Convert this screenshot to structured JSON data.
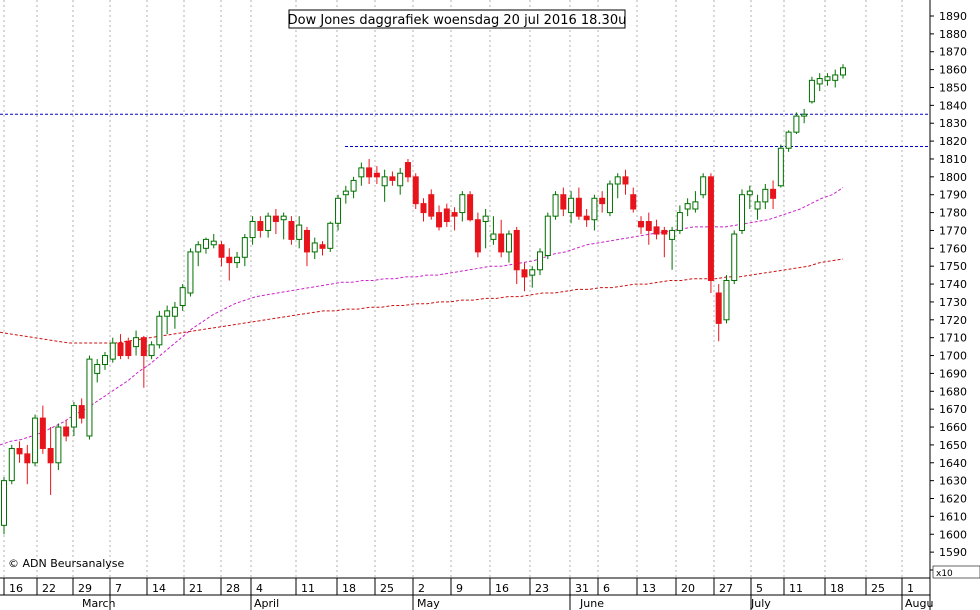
{
  "chart_data": {
    "type": "candlestick",
    "title": "Dow Jones daggrafiek woensdag 20 jul 2016 18.30u",
    "credit": "© ADN Beursanalyse",
    "axis_unit_label": "x10",
    "ylim": [
      1580,
      1890
    ],
    "ytick_step": 10,
    "grid": "vertical-dotted",
    "colors": {
      "up_body": "#ffffff",
      "up_border": "#007000",
      "down_body": "#e8141c",
      "down_border": "#e8141c",
      "wick_up": "#007000",
      "wick_down": "#e8141c",
      "hline": "#0000cc",
      "ma_short": "#cc22cc",
      "ma_long": "#cc1111",
      "grid": "#b0b0b0"
    },
    "horizontal_levels": [
      1835,
      1817
    ],
    "x_day_labels": [
      "16",
      "22",
      "29",
      "7",
      "14",
      "21",
      "28",
      "4",
      "11",
      "18",
      "25",
      "2",
      "9",
      "16",
      "23",
      "31",
      "6",
      "13",
      "20",
      "27",
      "5",
      "11",
      "18",
      "25",
      "1"
    ],
    "month_labels": [
      "March",
      "April",
      "May",
      "June",
      "July",
      "Augu"
    ],
    "candles": [
      {
        "o": 1605,
        "h": 1632,
        "l": 1600,
        "c": 1630
      },
      {
        "o": 1630,
        "h": 1650,
        "l": 1628,
        "c": 1648
      },
      {
        "o": 1648,
        "h": 1652,
        "l": 1640,
        "c": 1645
      },
      {
        "o": 1645,
        "h": 1650,
        "l": 1628,
        "c": 1640
      },
      {
        "o": 1640,
        "h": 1667,
        "l": 1638,
        "c": 1665
      },
      {
        "o": 1665,
        "h": 1672,
        "l": 1645,
        "c": 1648
      },
      {
        "o": 1648,
        "h": 1660,
        "l": 1622,
        "c": 1640
      },
      {
        "o": 1640,
        "h": 1662,
        "l": 1636,
        "c": 1660
      },
      {
        "o": 1660,
        "h": 1664,
        "l": 1652,
        "c": 1655
      },
      {
        "o": 1660,
        "h": 1674,
        "l": 1655,
        "c": 1672
      },
      {
        "o": 1672,
        "h": 1676,
        "l": 1662,
        "c": 1665
      },
      {
        "o": 1655,
        "h": 1700,
        "l": 1653,
        "c": 1698
      },
      {
        "o": 1690,
        "h": 1698,
        "l": 1685,
        "c": 1695
      },
      {
        "o": 1695,
        "h": 1702,
        "l": 1692,
        "c": 1700
      },
      {
        "o": 1698,
        "h": 1710,
        "l": 1696,
        "c": 1707
      },
      {
        "o": 1707,
        "h": 1712,
        "l": 1698,
        "c": 1700
      },
      {
        "o": 1708,
        "h": 1710,
        "l": 1698,
        "c": 1700
      },
      {
        "o": 1705,
        "h": 1714,
        "l": 1700,
        "c": 1710
      },
      {
        "o": 1710,
        "h": 1711,
        "l": 1682,
        "c": 1700
      },
      {
        "o": 1700,
        "h": 1708,
        "l": 1698,
        "c": 1706
      },
      {
        "o": 1706,
        "h": 1725,
        "l": 1704,
        "c": 1722
      },
      {
        "o": 1722,
        "h": 1728,
        "l": 1712,
        "c": 1725
      },
      {
        "o": 1722,
        "h": 1730,
        "l": 1715,
        "c": 1727
      },
      {
        "o": 1728,
        "h": 1740,
        "l": 1725,
        "c": 1738
      },
      {
        "o": 1735,
        "h": 1760,
        "l": 1733,
        "c": 1758
      },
      {
        "o": 1758,
        "h": 1764,
        "l": 1750,
        "c": 1762
      },
      {
        "o": 1760,
        "h": 1766,
        "l": 1757,
        "c": 1765
      },
      {
        "o": 1762,
        "h": 1768,
        "l": 1760,
        "c": 1764
      },
      {
        "o": 1762,
        "h": 1764,
        "l": 1750,
        "c": 1755
      },
      {
        "o": 1755,
        "h": 1760,
        "l": 1742,
        "c": 1752
      },
      {
        "o": 1752,
        "h": 1758,
        "l": 1749,
        "c": 1755
      },
      {
        "o": 1755,
        "h": 1768,
        "l": 1750,
        "c": 1766
      },
      {
        "o": 1766,
        "h": 1778,
        "l": 1762,
        "c": 1775
      },
      {
        "o": 1775,
        "h": 1778,
        "l": 1766,
        "c": 1770
      },
      {
        "o": 1770,
        "h": 1780,
        "l": 1766,
        "c": 1778
      },
      {
        "o": 1778,
        "h": 1782,
        "l": 1768,
        "c": 1775
      },
      {
        "o": 1776,
        "h": 1780,
        "l": 1765,
        "c": 1778
      },
      {
        "o": 1775,
        "h": 1778,
        "l": 1762,
        "c": 1765
      },
      {
        "o": 1765,
        "h": 1778,
        "l": 1760,
        "c": 1773
      },
      {
        "o": 1770,
        "h": 1772,
        "l": 1750,
        "c": 1758
      },
      {
        "o": 1758,
        "h": 1766,
        "l": 1754,
        "c": 1763
      },
      {
        "o": 1762,
        "h": 1764,
        "l": 1756,
        "c": 1760
      },
      {
        "o": 1760,
        "h": 1775,
        "l": 1758,
        "c": 1774
      },
      {
        "o": 1774,
        "h": 1790,
        "l": 1770,
        "c": 1788
      },
      {
        "o": 1790,
        "h": 1795,
        "l": 1785,
        "c": 1792
      },
      {
        "o": 1792,
        "h": 1800,
        "l": 1788,
        "c": 1798
      },
      {
        "o": 1800,
        "h": 1808,
        "l": 1795,
        "c": 1805
      },
      {
        "o": 1805,
        "h": 1810,
        "l": 1796,
        "c": 1800
      },
      {
        "o": 1802,
        "h": 1806,
        "l": 1796,
        "c": 1800
      },
      {
        "o": 1795,
        "h": 1804,
        "l": 1786,
        "c": 1800
      },
      {
        "o": 1800,
        "h": 1803,
        "l": 1795,
        "c": 1798
      },
      {
        "o": 1795,
        "h": 1805,
        "l": 1790,
        "c": 1802
      },
      {
        "o": 1808,
        "h": 1810,
        "l": 1797,
        "c": 1800
      },
      {
        "o": 1800,
        "h": 1802,
        "l": 1782,
        "c": 1785
      },
      {
        "o": 1785,
        "h": 1788,
        "l": 1775,
        "c": 1780
      },
      {
        "o": 1790,
        "h": 1793,
        "l": 1776,
        "c": 1778
      },
      {
        "o": 1780,
        "h": 1784,
        "l": 1770,
        "c": 1772
      },
      {
        "o": 1782,
        "h": 1785,
        "l": 1772,
        "c": 1775
      },
      {
        "o": 1780,
        "h": 1783,
        "l": 1770,
        "c": 1778
      },
      {
        "o": 1780,
        "h": 1792,
        "l": 1775,
        "c": 1790
      },
      {
        "o": 1790,
        "h": 1792,
        "l": 1775,
        "c": 1776
      },
      {
        "o": 1776,
        "h": 1780,
        "l": 1755,
        "c": 1758
      },
      {
        "o": 1775,
        "h": 1782,
        "l": 1760,
        "c": 1778
      },
      {
        "o": 1765,
        "h": 1778,
        "l": 1762,
        "c": 1768
      },
      {
        "o": 1768,
        "h": 1776,
        "l": 1755,
        "c": 1758
      },
      {
        "o": 1758,
        "h": 1770,
        "l": 1752,
        "c": 1768
      },
      {
        "o": 1770,
        "h": 1772,
        "l": 1740,
        "c": 1748
      },
      {
        "o": 1748,
        "h": 1752,
        "l": 1736,
        "c": 1744
      },
      {
        "o": 1745,
        "h": 1750,
        "l": 1738,
        "c": 1748
      },
      {
        "o": 1748,
        "h": 1760,
        "l": 1745,
        "c": 1758
      },
      {
        "o": 1756,
        "h": 1780,
        "l": 1754,
        "c": 1778
      },
      {
        "o": 1778,
        "h": 1792,
        "l": 1776,
        "c": 1790
      },
      {
        "o": 1790,
        "h": 1794,
        "l": 1778,
        "c": 1782
      },
      {
        "o": 1780,
        "h": 1792,
        "l": 1774,
        "c": 1788
      },
      {
        "o": 1788,
        "h": 1794,
        "l": 1776,
        "c": 1778
      },
      {
        "o": 1778,
        "h": 1782,
        "l": 1772,
        "c": 1776
      },
      {
        "o": 1776,
        "h": 1790,
        "l": 1770,
        "c": 1788
      },
      {
        "o": 1788,
        "h": 1792,
        "l": 1780,
        "c": 1785
      },
      {
        "o": 1780,
        "h": 1798,
        "l": 1778,
        "c": 1796
      },
      {
        "o": 1796,
        "h": 1802,
        "l": 1788,
        "c": 1800
      },
      {
        "o": 1800,
        "h": 1804,
        "l": 1790,
        "c": 1796
      },
      {
        "o": 1790,
        "h": 1794,
        "l": 1780,
        "c": 1782
      },
      {
        "o": 1775,
        "h": 1778,
        "l": 1768,
        "c": 1772
      },
      {
        "o": 1775,
        "h": 1780,
        "l": 1762,
        "c": 1770
      },
      {
        "o": 1772,
        "h": 1776,
        "l": 1765,
        "c": 1768
      },
      {
        "o": 1770,
        "h": 1772,
        "l": 1755,
        "c": 1768
      },
      {
        "o": 1765,
        "h": 1772,
        "l": 1748,
        "c": 1770
      },
      {
        "o": 1770,
        "h": 1784,
        "l": 1768,
        "c": 1780
      },
      {
        "o": 1782,
        "h": 1788,
        "l": 1778,
        "c": 1785
      },
      {
        "o": 1782,
        "h": 1792,
        "l": 1780,
        "c": 1786
      },
      {
        "o": 1790,
        "h": 1802,
        "l": 1788,
        "c": 1800
      },
      {
        "o": 1800,
        "h": 1802,
        "l": 1735,
        "c": 1742
      },
      {
        "o": 1735,
        "h": 1740,
        "l": 1708,
        "c": 1718
      },
      {
        "o": 1720,
        "h": 1745,
        "l": 1718,
        "c": 1742
      },
      {
        "o": 1742,
        "h": 1770,
        "l": 1740,
        "c": 1768
      },
      {
        "o": 1770,
        "h": 1793,
        "l": 1768,
        "c": 1790
      },
      {
        "o": 1790,
        "h": 1795,
        "l": 1782,
        "c": 1792
      },
      {
        "o": 1782,
        "h": 1790,
        "l": 1776,
        "c": 1786
      },
      {
        "o": 1786,
        "h": 1796,
        "l": 1782,
        "c": 1793
      },
      {
        "o": 1793,
        "h": 1798,
        "l": 1782,
        "c": 1788
      },
      {
        "o": 1795,
        "h": 1818,
        "l": 1794,
        "c": 1816
      },
      {
        "o": 1816,
        "h": 1826,
        "l": 1814,
        "c": 1825
      },
      {
        "o": 1825,
        "h": 1836,
        "l": 1824,
        "c": 1834
      },
      {
        "o": 1834,
        "h": 1838,
        "l": 1830,
        "c": 1835
      },
      {
        "o": 1842,
        "h": 1856,
        "l": 1841,
        "c": 1854
      },
      {
        "o": 1852,
        "h": 1858,
        "l": 1848,
        "c": 1855
      },
      {
        "o": 1854,
        "h": 1858,
        "l": 1851,
        "c": 1856
      },
      {
        "o": 1854,
        "h": 1860,
        "l": 1850,
        "c": 1857
      },
      {
        "o": 1857,
        "h": 1863,
        "l": 1855,
        "c": 1861
      }
    ],
    "ma_short": [
      1650,
      1652,
      1653,
      1655,
      1657,
      1660,
      1663,
      1667,
      1670,
      1674,
      1678,
      1682,
      1686,
      1691,
      1695,
      1700,
      1705,
      1710,
      1715,
      1719,
      1723,
      1726,
      1729,
      1731,
      1733,
      1734,
      1735,
      1736,
      1737,
      1738,
      1739,
      1740,
      1741,
      1741,
      1742,
      1742,
      1743,
      1743,
      1744,
      1744,
      1745,
      1745,
      1746,
      1747,
      1748,
      1749,
      1750,
      1750,
      1751,
      1752,
      1753,
      1755,
      1757,
      1758,
      1760,
      1762,
      1763,
      1764,
      1765,
      1766,
      1767,
      1768,
      1769,
      1770,
      1771,
      1772,
      1772,
      1772,
      1772,
      1773,
      1774,
      1775,
      1776,
      1778,
      1780,
      1782,
      1785,
      1788,
      1790,
      1794
    ],
    "ma_long": [
      1713,
      1712,
      1711,
      1710,
      1709,
      1708,
      1707,
      1707,
      1707,
      1707,
      1707,
      1708,
      1709,
      1710,
      1711,
      1712,
      1713,
      1714,
      1715,
      1716,
      1717,
      1718,
      1719,
      1720,
      1721,
      1722,
      1723,
      1724,
      1725,
      1725,
      1726,
      1726,
      1727,
      1727,
      1728,
      1728,
      1729,
      1729,
      1730,
      1730,
      1731,
      1731,
      1732,
      1732,
      1733,
      1733,
      1734,
      1735,
      1735,
      1736,
      1737,
      1737,
      1738,
      1738,
      1739,
      1740,
      1740,
      1741,
      1742,
      1742,
      1743,
      1743,
      1743,
      1744,
      1744,
      1745,
      1746,
      1747,
      1748,
      1749,
      1750,
      1752,
      1753,
      1754
    ]
  }
}
